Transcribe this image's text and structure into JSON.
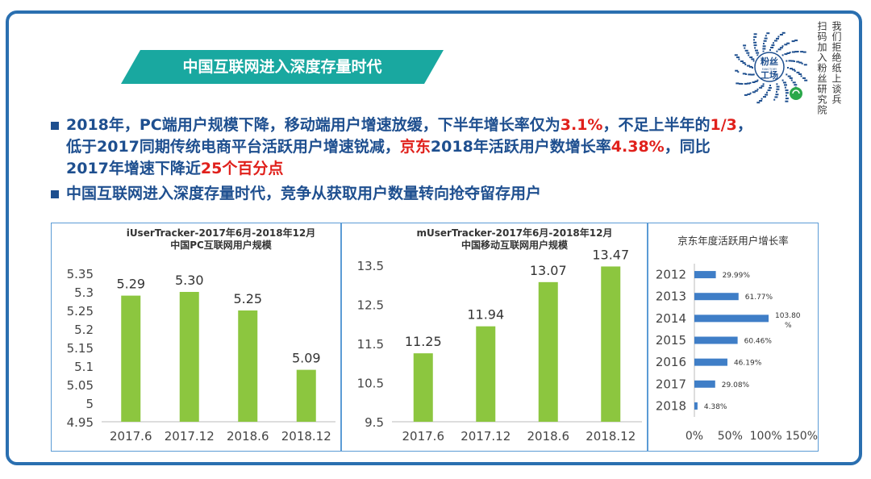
{
  "banner": {
    "title": "中国互联网进入深度存量时代"
  },
  "side_text": {
    "col1": "我们拒绝纸上谈兵",
    "col2": "扫码加入粉丝研究院"
  },
  "qr": {
    "logo_line1": "粉丝",
    "logo_line2": "工场",
    "logo_small": "FANCTORY"
  },
  "bullets": {
    "b1_l1_a": "2018年，PC端用户规模下降，移动端用户增速放缓，下半年增长率仅为",
    "b1_l1_v1": "3.1%",
    "b1_l1_b": "，不足上半年的",
    "b1_l1_v2": "1/3",
    "b1_l1_c": "，",
    "b1_l2_a": "低于2017同期传统电商平台活跃用户增速锐减，",
    "b1_l2_v1": "京东",
    "b1_l2_b": "2018年活跃用户数增长率",
    "b1_l2_v2": "4.38%",
    "b1_l2_c": "，同比",
    "b1_l3_a": "2017年增速下降近",
    "b1_l3_v1": "25个百分点",
    "b2": "中国互联网进入深度存量时代，竞争从获取用户数量转向抢夺留存用户"
  },
  "colors": {
    "accent": "#19a8a0",
    "text_blue": "#1e4f8f",
    "highlight_red": "#e0201b",
    "bar_green": "#8cc63f",
    "bar_blue": "#3f7ec7",
    "border": "#2a6fb0"
  },
  "chart_data": [
    {
      "type": "bar",
      "title": "iUserTracker-2017年6月-2018年12月",
      "subtitle": "中国PC互联网用户规模",
      "categories": [
        "2017.6",
        "2017.12",
        "2018.6",
        "2018.12"
      ],
      "values": [
        5.29,
        5.3,
        5.25,
        5.09
      ],
      "value_labels": [
        "5.29",
        "5.30",
        "5.25",
        "5.09"
      ],
      "ylim": [
        4.95,
        5.35
      ],
      "yticks": [
        "4.95",
        "5",
        "5.05",
        "5.1",
        "5.15",
        "5.2",
        "5.25",
        "5.3",
        "5.35"
      ],
      "grid": false
    },
    {
      "type": "bar",
      "title": "mUserTracker-2017年6月-2018年12月",
      "subtitle": "中国移动互联网用户规模",
      "categories": [
        "2017.6",
        "2017.12",
        "2018.6",
        "2018.12"
      ],
      "values": [
        11.25,
        11.94,
        13.07,
        13.47
      ],
      "value_labels": [
        "11.25",
        "11.94",
        "13.07",
        "13.47"
      ],
      "ylim": [
        9.5,
        13.5
      ],
      "yticks": [
        "9.5",
        "10.5",
        "11.5",
        "12.5",
        "13.5"
      ],
      "grid": false
    },
    {
      "type": "bar",
      "orientation": "horizontal",
      "title": "京东年度活跃用户增长率",
      "categories": [
        "2012",
        "2013",
        "2014",
        "2015",
        "2016",
        "2017",
        "2018"
      ],
      "values": [
        29.99,
        61.77,
        103.8,
        60.46,
        46.19,
        29.08,
        4.38
      ],
      "value_labels": [
        "29.99%",
        "61.77%",
        "103.80%",
        "60.46%",
        "46.19%",
        "29.08%",
        "4.38%"
      ],
      "xlim": [
        0,
        150
      ],
      "xticks": [
        "0%",
        "50%",
        "100%",
        "150%"
      ],
      "grid": false
    }
  ]
}
